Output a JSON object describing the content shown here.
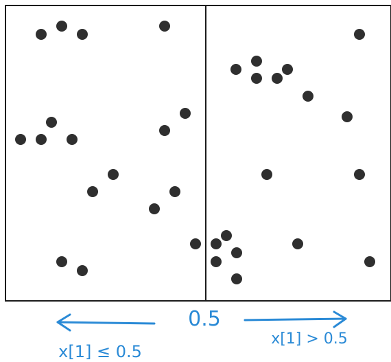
{
  "diagram": {
    "split_value": "0.5",
    "left_condition": "x[1] ≤ 0.5",
    "right_condition": "x[1] > 0.5",
    "colors": {
      "points": "#2f2f2f",
      "frame": "#1a1a1a",
      "annotation": "#2a8ad6"
    }
  }
}
